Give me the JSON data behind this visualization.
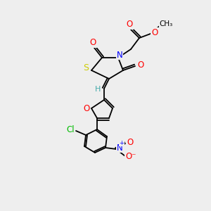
{
  "bg_color": "#eeeeee",
  "bond_color": "#000000",
  "atom_colors": {
    "O": "#ff0000",
    "N": "#0000ff",
    "S": "#cccc00",
    "Cl": "#00bb00",
    "H": "#44aaaa",
    "C": "#000000"
  },
  "font_size": 8.0,
  "lw": 1.3
}
